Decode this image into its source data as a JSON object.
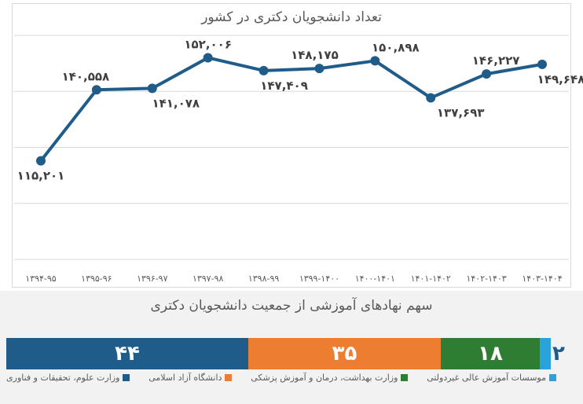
{
  "chart_data": [
    {
      "type": "line",
      "title": "تعداد دانشجویان دکتری در کشور",
      "categories": [
        "۱۳۹۴-۹۵",
        "۱۳۹۵-۹۶",
        "۱۳۹۶-۹۷",
        "۱۳۹۷-۹۸",
        "۱۳۹۸-۹۹",
        "۱۳۹۹-۱۴۰۰",
        "۱۴۰۰-۱۴۰۱",
        "۱۴۰۱-۱۴۰۲",
        "۱۴۰۲-۱۴۰۳",
        "۱۴۰۳-۱۴۰۴"
      ],
      "values": [
        115201,
        140558,
        141078,
        152006,
        147409,
        148175,
        150898,
        137693,
        146227,
        149648
      ],
      "data_labels": [
        "۱۱۵,۲۰۱",
        "۱۴۰,۵۵۸",
        "۱۴۱,۰۷۸",
        "۱۵۲,۰۰۶",
        "۱۴۷,۴۰۹",
        "۱۴۸,۱۷۵",
        "۱۵۰,۸۹۸",
        "۱۳۷,۶۹۳",
        "۱۴۶,۲۲۷",
        "۱۴۹,۶۴۸"
      ],
      "ylim": [
        80000,
        160000
      ],
      "grid": true,
      "color": "#1f5c8a"
    },
    {
      "type": "bar",
      "orientation": "horizontal-stacked",
      "title": "سهم نهادهای آموزشی از جمعیت دانشجویان دکتری",
      "series": [
        {
          "name": "وزارت علوم، تحقیقات و فناوری",
          "value": 44,
          "label": "۴۴",
          "color": "#1f5c8a"
        },
        {
          "name": "دانشگاه آزاد اسلامی",
          "value": 35,
          "label": "۳۵",
          "color": "#ed7d31"
        },
        {
          "name": "وزارت بهداشت، درمان و آموزش پزشکی",
          "value": 18,
          "label": "۱۸",
          "color": "#2e7d32"
        },
        {
          "name": "موسسات آموزش عالی غیردولتی",
          "value": 2,
          "label": "۲",
          "color": "#29a3dc"
        }
      ],
      "legend_position": "bottom"
    }
  ]
}
